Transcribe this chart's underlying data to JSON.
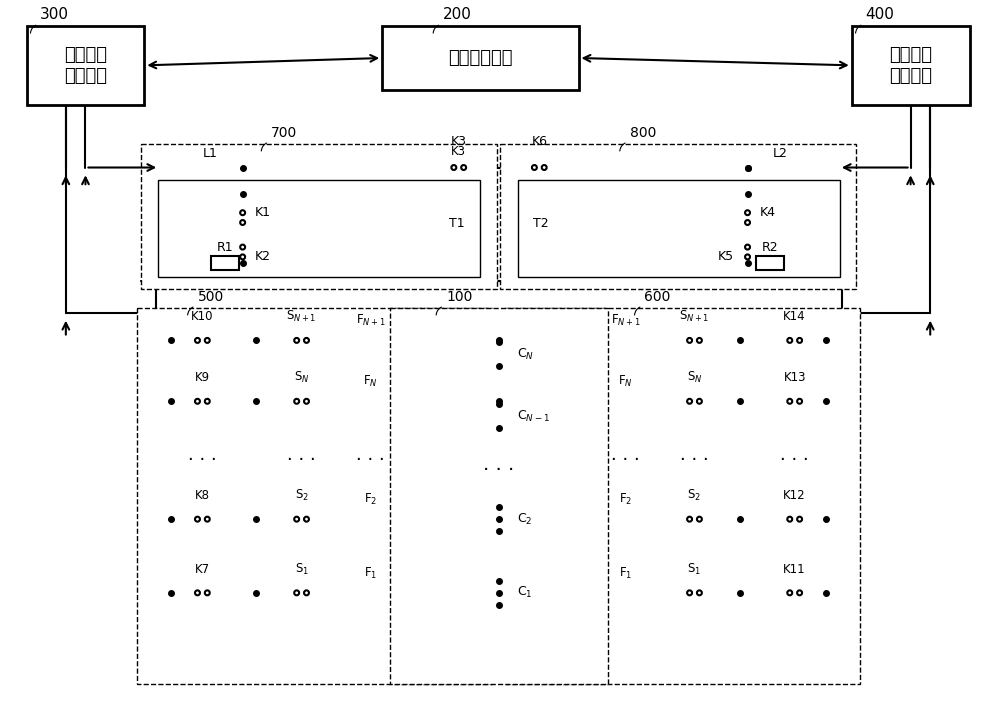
{
  "fig_width": 10.0,
  "fig_height": 7.08,
  "bg_color": "#ffffff",
  "labels": {
    "block_300": "第一检测\n控制模块",
    "block_200": "均衡控制模块",
    "block_400": "第二检测\n控制模块",
    "ref_300": "300",
    "ref_200": "200",
    "ref_400": "400",
    "ref_700": "700",
    "ref_800": "800",
    "ref_500": "500",
    "ref_600": "600",
    "ref_100": "100",
    "L1": "L1",
    "L2": "L2",
    "K1": "K1",
    "K2": "K2",
    "K3": "K3",
    "K4": "K4",
    "K5": "K5",
    "K6": "K6",
    "K7": "K7",
    "K8": "K8",
    "K9": "K9",
    "K10": "K10",
    "K11": "K11",
    "K12": "K12",
    "K13": "K13",
    "K14": "K14",
    "R1": "R1",
    "R2": "R2",
    "T1": "T1",
    "T2": "T2",
    "SN1L": "S$_{N+1}$",
    "FN1L": "F$_{N+1}$",
    "SNL": "S$_N$",
    "FNL": "F$_N$",
    "S2L": "S$_2$",
    "F2L": "F$_2$",
    "S1L": "S$_1$",
    "F1L": "F$_1$",
    "SN1R": "S$_{N+1}$",
    "FN1R": "F$_{N+1}$",
    "SNR": "S$_N$",
    "FNR": "F$_N$",
    "S2R": "S$_2$",
    "F2R": "F$_2$",
    "S1R": "S$_1$",
    "F1R": "F$_1$",
    "CN": "C$_N$",
    "CN1": "C$_{N-1}$",
    "C2": "C$_2$",
    "C1": "C$_1$"
  }
}
